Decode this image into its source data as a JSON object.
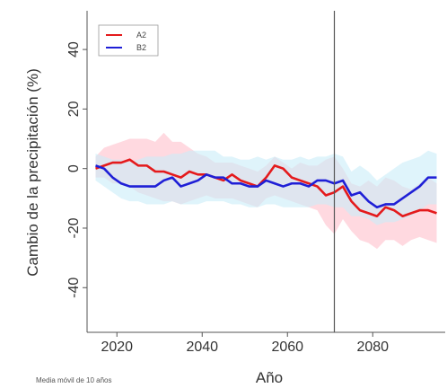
{
  "chart_data": {
    "type": "line",
    "xlabel": "Año",
    "ylabel": "Cambio de la precipitación (%)",
    "xlim": [
      2013,
      2097
    ],
    "ylim": [
      -55,
      53
    ],
    "x_ticks": [
      2020,
      2040,
      2060,
      2080
    ],
    "x_tick_labels": [
      "2020",
      "2040",
      "2060",
      "2080"
    ],
    "y_ticks": [
      -40,
      -20,
      0,
      20,
      40
    ],
    "y_tick_labels": [
      "-40",
      "-20",
      "0",
      "20",
      "40"
    ],
    "vline_x": 2071,
    "grid": false,
    "legend_position": "top-left",
    "note": "Media móvil de 10 años",
    "series": [
      {
        "name": "A2",
        "color": "#e41a1c",
        "band_color": "#ffc0cb",
        "x": [
          2015,
          2017,
          2019,
          2021,
          2023,
          2025,
          2027,
          2029,
          2031,
          2033,
          2035,
          2037,
          2039,
          2041,
          2043,
          2045,
          2047,
          2049,
          2051,
          2053,
          2055,
          2057,
          2059,
          2061,
          2063,
          2065,
          2067,
          2069,
          2071,
          2073,
          2075,
          2077,
          2079,
          2081,
          2083,
          2085,
          2087,
          2089,
          2091,
          2093,
          2095
        ],
        "y": [
          0,
          1,
          2,
          2,
          3,
          1,
          1,
          -1,
          -1,
          -2,
          -3,
          -1,
          -2,
          -2,
          -3,
          -4,
          -2,
          -4,
          -5,
          -6,
          -3,
          1,
          0,
          -3,
          -4,
          -5,
          -6,
          -9,
          -8,
          -6,
          -11,
          -14,
          -15,
          -16,
          -13,
          -14,
          -16,
          -15,
          -14,
          -14,
          -15
        ],
        "upper": [
          4,
          7,
          8,
          9,
          10,
          10,
          10,
          9,
          12,
          9,
          9,
          7,
          5,
          4,
          2,
          2,
          2,
          1,
          0,
          -1,
          1,
          4,
          2,
          0,
          2,
          1,
          1,
          3,
          4,
          0,
          -5,
          -6,
          -4,
          -6,
          -3,
          -4,
          -6,
          -7,
          -5,
          -3,
          -5
        ],
        "lower": [
          -3,
          -3,
          -5,
          -5,
          -6,
          -8,
          -9,
          -10,
          -11,
          -11,
          -12,
          -11,
          -10,
          -9,
          -10,
          -10,
          -10,
          -11,
          -12,
          -13,
          -10,
          -9,
          -10,
          -11,
          -12,
          -13,
          -14,
          -19,
          -22,
          -17,
          -21,
          -24,
          -25,
          -27,
          -24,
          -24,
          -26,
          -24,
          -23,
          -24,
          -25
        ]
      },
      {
        "name": "B2",
        "color": "#1f1fd6",
        "band_color": "#c9ecf8",
        "x": [
          2015,
          2017,
          2019,
          2021,
          2023,
          2025,
          2027,
          2029,
          2031,
          2033,
          2035,
          2037,
          2039,
          2041,
          2043,
          2045,
          2047,
          2049,
          2051,
          2053,
          2055,
          2057,
          2059,
          2061,
          2063,
          2065,
          2067,
          2069,
          2071,
          2073,
          2075,
          2077,
          2079,
          2081,
          2083,
          2085,
          2087,
          2089,
          2091,
          2093,
          2095
        ],
        "y": [
          1,
          0,
          -3,
          -5,
          -6,
          -6,
          -6,
          -6,
          -4,
          -3,
          -6,
          -5,
          -4,
          -2,
          -3,
          -3,
          -5,
          -5,
          -6,
          -6,
          -4,
          -5,
          -6,
          -5,
          -5,
          -6,
          -4,
          -4,
          -5,
          -4,
          -9,
          -8,
          -11,
          -13,
          -12,
          -12,
          -10,
          -8,
          -6,
          -3,
          -3
        ],
        "upper": [
          5,
          4,
          3,
          3,
          2,
          3,
          4,
          4,
          4,
          5,
          5,
          6,
          6,
          6,
          6,
          4,
          4,
          3,
          3,
          4,
          3,
          4,
          3,
          3,
          4,
          3,
          4,
          4,
          5,
          4,
          -1,
          1,
          -1,
          -4,
          -2,
          0,
          2,
          3,
          4,
          6,
          5
        ],
        "lower": [
          -4,
          -6,
          -8,
          -10,
          -11,
          -11,
          -12,
          -12,
          -12,
          -11,
          -12,
          -12,
          -12,
          -11,
          -11,
          -11,
          -12,
          -12,
          -13,
          -13,
          -12,
          -12,
          -13,
          -13,
          -13,
          -13,
          -12,
          -12,
          -13,
          -13,
          -16,
          -16,
          -17,
          -19,
          -18,
          -18,
          -17,
          -16,
          -14,
          -12,
          -12
        ]
      }
    ]
  }
}
